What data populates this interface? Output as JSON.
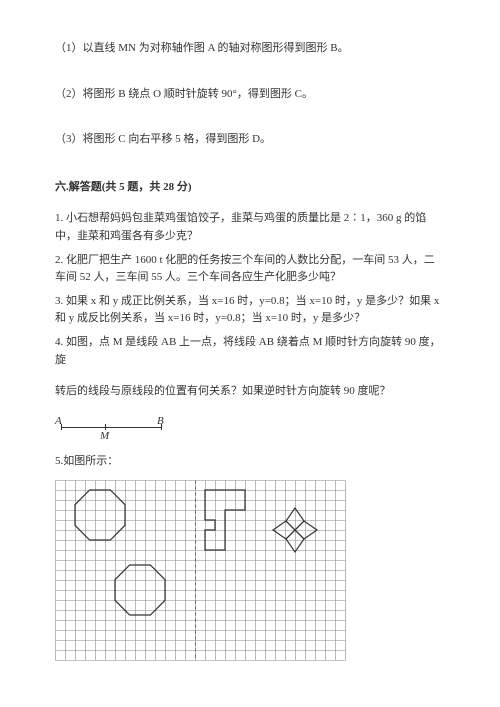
{
  "item1": "（1）以直线 MN 为对称轴作图 A 的轴对称图形得到图形 B。",
  "item2": "（2）将图形 B 绕点 O 顺时针旋转 90°，得到图形 C。",
  "item3": "（3）将图形 C 向右平移 5 格，得到图形 D。",
  "section6": "六.解答题(共 5 题，共 28 分)",
  "q1": "1. 小石想帮妈妈包韭菜鸡蛋馅饺子，韭菜与鸡蛋的质量比是 2∶1，360 g 的馅中，韭菜和鸡蛋各有多少克？",
  "q2": "2. 化肥厂把生产 1600 t 化肥的任务按三个车间的人数比分配，一车间 53 人，二车间 52 人，三车间 55 人。三个车间各应生产化肥多少吨？",
  "q3": "3. 如果 x 和 y 成正比例关系，当 x=16 时，y=0.8；当 x=10 时，y 是多少？如果 x 和 y 成反比例关系，当 x=16 时，y=0.8；当 x=10 时，y 是多少？",
  "q4a": "4. 如图，点 M 是线段 AB 上一点，将线段 AB 绕着点 M 顺时针方向旋转 90 度，旋",
  "q4b": "转后的线段与原线段的位置有何关系？如果逆时针方向旋转 90 度呢？",
  "labA": "A",
  "labM": "M",
  "labB": "B",
  "q5": "5.如图所示：",
  "grid": {
    "cols": 29,
    "rows": 18,
    "cell": 10,
    "stroke": "#8a8a8a",
    "shapeStroke": "#333333",
    "dash": "3,3"
  }
}
